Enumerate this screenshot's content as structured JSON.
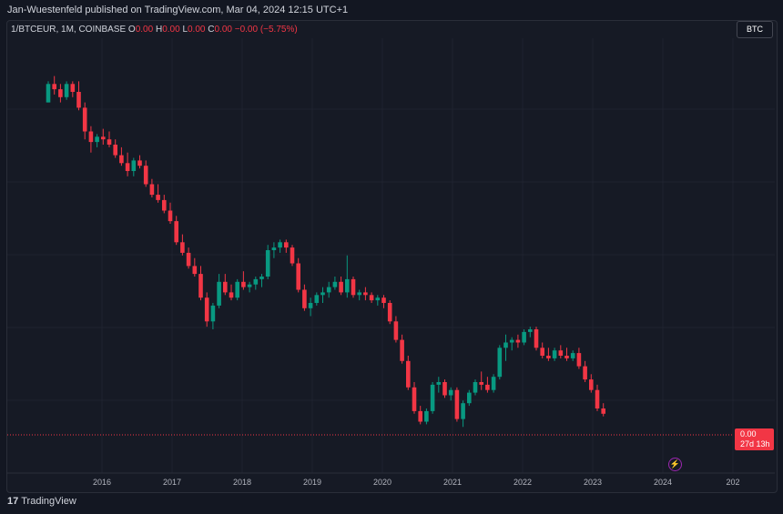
{
  "header": {
    "published": "Jan-Wuestenfeld published on TradingView.com, Mar 04, 2024 12:15 UTC+1"
  },
  "legend": {
    "symbol": "1/BTCEUR, 1M, COINBASE",
    "o_label": "O",
    "o_val": "0.00",
    "h_label": "H",
    "h_val": "0.00",
    "l_label": "L",
    "l_val": "0.00",
    "c_label": "C",
    "c_val": "0.00",
    "change": "−0.00 (−5.75%)"
  },
  "badge": "BTC",
  "price_tag": {
    "value": "0.00",
    "countdown": "27d 13h"
  },
  "footer": {
    "logo": "TradingView"
  },
  "colors": {
    "up": "#089981",
    "down": "#f23645",
    "bg": "#161a25",
    "grid": "#1f2330"
  },
  "chart_data": {
    "type": "candlestick",
    "title": "1/BTCEUR, 1M, COINBASE",
    "x_tick_labels": [
      "2016",
      "2017",
      "2018",
      "2019",
      "2020",
      "2021",
      "2022",
      "2023",
      "2024",
      "202"
    ],
    "y_axis_visible": false,
    "grid": true,
    "ohlc_note": "relative scale 0-100 (100 = highest value); price axis not printed",
    "candles": [
      [
        86,
        94,
        86,
        93
      ],
      [
        93,
        96,
        89,
        91
      ],
      [
        91,
        93,
        86,
        88
      ],
      [
        88,
        94,
        87,
        93
      ],
      [
        93,
        94,
        88,
        90
      ],
      [
        90,
        94,
        83,
        84
      ],
      [
        84,
        86,
        72,
        75
      ],
      [
        75,
        77,
        67,
        71
      ],
      [
        71,
        74,
        69,
        73
      ],
      [
        73,
        76,
        70,
        72
      ],
      [
        72,
        75,
        69,
        70
      ],
      [
        70,
        72,
        65,
        66
      ],
      [
        66,
        69,
        62,
        63
      ],
      [
        63,
        67,
        58,
        60
      ],
      [
        60,
        65,
        58,
        64
      ],
      [
        64,
        66,
        61,
        62
      ],
      [
        62,
        64,
        54,
        55
      ],
      [
        55,
        57,
        50,
        51
      ],
      [
        51,
        55,
        48,
        49
      ],
      [
        49,
        51,
        44,
        45
      ],
      [
        45,
        48,
        40,
        41
      ],
      [
        41,
        43,
        32,
        33
      ],
      [
        33,
        36,
        28,
        29
      ],
      [
        29,
        31,
        23,
        24
      ],
      [
        24,
        27,
        20,
        21
      ],
      [
        21,
        24,
        11,
        12
      ],
      [
        12,
        14,
        1,
        3
      ],
      [
        3,
        10,
        0,
        9
      ],
      [
        9,
        21,
        8,
        18
      ],
      [
        18,
        21,
        13,
        14
      ],
      [
        14,
        17,
        11,
        12
      ],
      [
        12,
        19,
        11,
        18
      ],
      [
        18,
        22,
        15,
        16
      ],
      [
        16,
        18,
        14,
        17
      ],
      [
        17,
        20,
        15,
        19
      ],
      [
        19,
        21,
        16,
        20
      ],
      [
        20,
        32,
        19,
        30
      ],
      [
        30,
        33,
        27,
        31
      ],
      [
        31,
        34,
        29,
        33
      ],
      [
        33,
        34,
        29,
        31
      ],
      [
        31,
        32,
        24,
        25
      ],
      [
        25,
        27,
        14,
        15
      ],
      [
        15,
        17,
        7,
        8
      ],
      [
        8,
        12,
        5,
        10
      ],
      [
        10,
        14,
        9,
        13
      ],
      [
        13,
        16,
        10,
        14
      ],
      [
        14,
        18,
        12,
        16
      ],
      [
        16,
        20,
        15,
        18
      ],
      [
        18,
        20,
        13,
        14
      ],
      [
        14,
        28,
        12,
        19
      ],
      [
        19,
        20,
        12,
        13
      ],
      [
        13,
        15,
        11,
        14
      ],
      [
        14,
        16,
        11,
        13
      ],
      [
        13,
        14,
        10,
        11
      ],
      [
        11,
        13,
        9,
        12
      ],
      [
        12,
        13,
        8,
        10
      ],
      [
        10,
        11,
        2,
        3
      ],
      [
        3,
        5,
        -5,
        -4
      ],
      [
        -4,
        -2,
        -13,
        -12
      ],
      [
        -12,
        -10,
        -23,
        -22
      ],
      [
        -22,
        -20,
        -32,
        -31
      ],
      [
        -31,
        -29,
        -36,
        -35
      ],
      [
        -35,
        -30,
        -36,
        -31
      ],
      [
        -31,
        -20,
        -32,
        -21
      ],
      [
        -21,
        -18,
        -24,
        -20
      ],
      [
        -20,
        -19,
        -26,
        -25
      ],
      [
        -25,
        -22,
        -27,
        -23
      ],
      [
        -23,
        -22,
        -35,
        -34
      ],
      [
        -34,
        -27,
        -37,
        -28
      ],
      [
        -28,
        -23,
        -29,
        -24
      ],
      [
        -24,
        -19,
        -25,
        -20
      ],
      [
        -20,
        -16,
        -23,
        -21
      ],
      [
        -21,
        -18,
        -24,
        -23
      ],
      [
        -23,
        -17,
        -24,
        -18
      ],
      [
        -18,
        -6,
        -19,
        -7
      ],
      [
        -7,
        -2,
        -12,
        -5
      ],
      [
        -5,
        -3,
        -8,
        -4
      ],
      [
        -4,
        -2,
        -7,
        -5
      ],
      [
        -5,
        0,
        -6,
        -1
      ],
      [
        -1,
        1,
        -3,
        0
      ],
      [
        0,
        1,
        -8,
        -7
      ],
      [
        -7,
        -5,
        -11,
        -10
      ],
      [
        -10,
        -7,
        -12,
        -11
      ],
      [
        -11,
        -7,
        -12,
        -8
      ],
      [
        -8,
        -6,
        -11,
        -10
      ],
      [
        -10,
        -7,
        -12,
        -11
      ],
      [
        -11,
        -8,
        -12,
        -9
      ],
      [
        -9,
        -7,
        -15,
        -14
      ],
      [
        -14,
        -12,
        -20,
        -19
      ],
      [
        -19,
        -17,
        -24,
        -23
      ],
      [
        -23,
        -21,
        -31,
        -30
      ],
      [
        -30,
        -28,
        -33,
        -32
      ]
    ]
  }
}
